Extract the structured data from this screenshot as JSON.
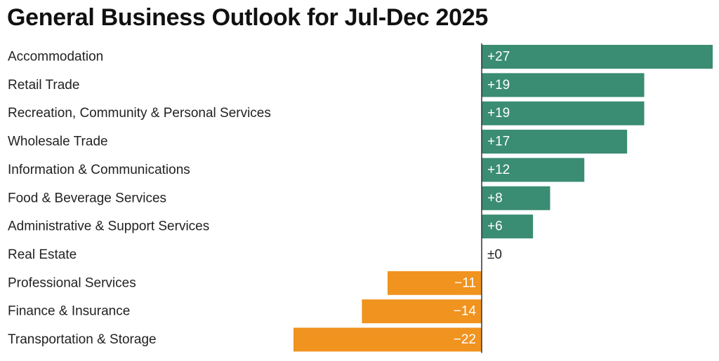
{
  "chart_data": {
    "type": "bar",
    "orientation": "horizontal",
    "title": "General Business Outlook for Jul-Dec 2025",
    "categories": [
      "Accommodation",
      "Retail Trade",
      "Recreation, Community & Personal Services",
      "Wholesale Trade",
      "Information & Communications",
      "Food & Beverage Services",
      "Administrative & Support Services",
      "Real Estate",
      "Professional Services",
      "Finance & Insurance",
      "Transportation & Storage"
    ],
    "values": [
      27,
      19,
      19,
      17,
      12,
      8,
      6,
      0,
      -11,
      -14,
      -22
    ],
    "value_labels": [
      "+27",
      "+19",
      "+19",
      "+17",
      "+12",
      "+8",
      "+6",
      "±0",
      "−11",
      "−14",
      "−22"
    ],
    "xlim": [
      -22,
      27
    ],
    "xlabel": "",
    "ylabel": "",
    "grid": false,
    "legend": "none",
    "colors": {
      "positive": "#3a8c73",
      "negative": "#f0931f",
      "axis": "#333333",
      "category_text": "#222222",
      "zero_label_text": "#222222",
      "bar_label_text": "#ffffff"
    }
  }
}
